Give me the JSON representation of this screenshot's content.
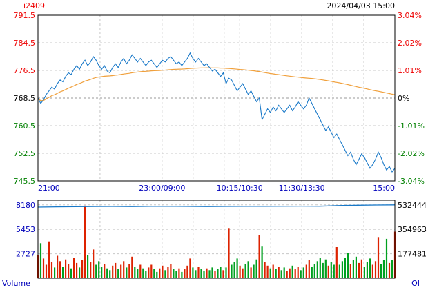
{
  "header": {
    "symbol": "i2409",
    "datetime": "2024/04/03 15:00"
  },
  "footer": {
    "volume_label": "Volume",
    "oi_label": "OI"
  },
  "colors": {
    "up": "#ee0000",
    "down": "#008000",
    "neutral": "#000000",
    "price_line": "#1878c8",
    "avg_line": "#f0a03c",
    "bar_up": "#dd2200",
    "bar_down": "#00a020",
    "oi_line": "#1878c8",
    "grid": "#c8c8c8",
    "grid_mid": "#999999",
    "axis_blue": "#0000bb",
    "border": "#000000",
    "background": "#ffffff"
  },
  "chart_data": [
    {
      "type": "line",
      "name": "intraday-price",
      "title": "i2409 intraday price with average line",
      "ylim": [
        745.5,
        791.5
      ],
      "reference_price": 768.5,
      "x_axis": {
        "session_minutes_total": 345,
        "ticks": [
          {
            "label": "21:00",
            "min": 0
          },
          {
            "label": "23:00/09:00",
            "min": 120
          },
          {
            "label": "10:15/10:30",
            "min": 195
          },
          {
            "label": "11:30/13:30",
            "min": 255
          },
          {
            "label": "15:00",
            "min": 345
          }
        ],
        "grid_minutes": [
          60,
          120,
          150,
          180,
          195,
          225,
          255,
          285,
          315
        ]
      },
      "y_ticks_left": [
        {
          "label": "791.5",
          "color": "up"
        },
        {
          "label": "784.5",
          "color": "up"
        },
        {
          "label": "776.5",
          "color": "up"
        },
        {
          "label": "768.5",
          "color": "neutral"
        },
        {
          "label": "760.5",
          "color": "down"
        },
        {
          "label": "752.5",
          "color": "down"
        },
        {
          "label": "745.5",
          "color": "down"
        }
      ],
      "y_ticks_right": [
        {
          "label": "3.04%",
          "color": "up"
        },
        {
          "label": "2.02%",
          "color": "up"
        },
        {
          "label": "1.01%",
          "color": "up"
        },
        {
          "label": "0%",
          "color": "neutral"
        },
        {
          "label": "-1.01%",
          "color": "down"
        },
        {
          "label": "-2.02%",
          "color": "down"
        },
        {
          "label": "-3.04%",
          "color": "down"
        }
      ],
      "series": [
        {
          "name": "price",
          "values": [
            768.5,
            767.0,
            768.0,
            769.5,
            770.5,
            771.5,
            771.0,
            772.5,
            773.5,
            773.0,
            774.5,
            775.5,
            775.0,
            776.5,
            777.5,
            776.5,
            778.0,
            779.0,
            777.5,
            778.5,
            780.0,
            779.0,
            777.5,
            776.5,
            777.5,
            776.0,
            775.5,
            777.0,
            778.0,
            777.0,
            778.5,
            779.5,
            778.0,
            779.0,
            780.5,
            779.5,
            778.5,
            779.5,
            778.5,
            777.5,
            778.5,
            779.0,
            778.0,
            777.0,
            778.0,
            779.0,
            778.5,
            779.5,
            780.0,
            779.0,
            778.0,
            778.5,
            777.5,
            778.5,
            779.5,
            781.0,
            779.5,
            778.5,
            779.5,
            778.5,
            777.5,
            778.0,
            777.0,
            776.0,
            776.5,
            775.5,
            774.5,
            775.5,
            772.5,
            774.0,
            773.5,
            772.0,
            770.5,
            771.5,
            772.5,
            771.0,
            769.5,
            770.5,
            769.0,
            767.5,
            768.5,
            762.5,
            764.0,
            765.5,
            764.5,
            766.0,
            765.0,
            766.5,
            765.5,
            764.5,
            765.5,
            766.5,
            765.0,
            766.0,
            767.5,
            766.5,
            765.5,
            766.5,
            768.5,
            767.0,
            765.5,
            764.0,
            762.5,
            761.0,
            759.5,
            760.5,
            759.0,
            757.5,
            758.5,
            757.0,
            755.5,
            754.0,
            752.5,
            753.5,
            751.5,
            750.0,
            751.5,
            753.0,
            752.0,
            750.5,
            749.0,
            750.0,
            751.5,
            753.5,
            752.0,
            750.0,
            748.5,
            749.5,
            748.0,
            749.0
          ]
        },
        {
          "name": "average",
          "derived_from": "running_mean_of_price"
        }
      ]
    },
    {
      "type": "bar",
      "name": "volume",
      "ylim": [
        0,
        8700
      ],
      "y_ticks_left": [
        {
          "label": "8180",
          "value": 8180
        },
        {
          "label": "5453",
          "value": 5453
        },
        {
          "label": "2727",
          "value": 2727
        }
      ],
      "values": [
        2600,
        3900,
        2200,
        1500,
        4100,
        1800,
        1200,
        2500,
        1900,
        1300,
        2100,
        1600,
        1100,
        2300,
        1700,
        1200,
        2000,
        8100,
        2600,
        1800,
        3200,
        1500,
        1900,
        1300,
        1600,
        1100,
        900,
        1400,
        1700,
        1000,
        1500,
        1900,
        1200,
        1600,
        2400,
        1300,
        1000,
        1500,
        1100,
        800,
        1200,
        1500,
        1000,
        700,
        1100,
        1400,
        900,
        1300,
        1600,
        1000,
        800,
        1100,
        700,
        1000,
        1400,
        2200,
        1200,
        900,
        1300,
        1000,
        800,
        1100,
        900,
        1200,
        800,
        1000,
        1300,
        900,
        1200,
        5600,
        1500,
        1800,
        2200,
        1400,
        1100,
        1600,
        1900,
        1200,
        1500,
        2100,
        4800,
        3600,
        1800,
        1400,
        1100,
        1500,
        1000,
        1300,
        900,
        1200,
        800,
        1100,
        1400,
        1000,
        1300,
        900,
        1200,
        1500,
        2000,
        1300,
        1600,
        1900,
        2300,
        1700,
        2100,
        1400,
        1800,
        1500,
        3500,
        1500,
        1900,
        2300,
        2800,
        1600,
        2000,
        2400,
        1700,
        2100,
        1300,
        1800,
        2200,
        1500,
        1900,
        4600,
        1600,
        2000,
        4400,
        1700,
        2000,
        5200
      ],
      "oi": {
        "name": "open-interest",
        "y_ticks_right": [
          {
            "label": "532444",
            "value": 532444
          },
          {
            "label": "354963",
            "value": 354963
          },
          {
            "label": "177481",
            "value": 177481
          }
        ],
        "values": [
          516000,
          518000,
          519500,
          520500,
          521000,
          520000,
          521500,
          522000,
          521000,
          520000,
          521000,
          522000,
          521500,
          522500,
          523000,
          522500,
          527000,
          529500,
          531000,
          532444
        ]
      }
    }
  ]
}
